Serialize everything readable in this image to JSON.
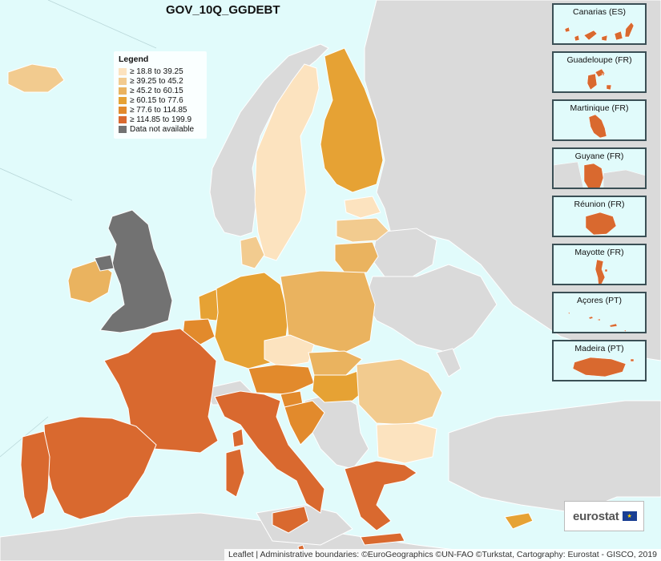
{
  "map": {
    "title": "GOV_10Q_GGDEBT",
    "colors": {
      "sea": "#e1fbfb",
      "no_data_country": "#dadada",
      "border": "#ffffff",
      "class1": "#fce3bf",
      "class2": "#f2cb8f",
      "class3": "#eab35f",
      "class4": "#e6a234",
      "class5": "#e28a2c",
      "class6": "#d9692f",
      "not_available": "#727272"
    },
    "legend": {
      "title": "Legend",
      "items": [
        {
          "label": "≥ 18.8 to 39.25",
          "color": "#fce3bf"
        },
        {
          "label": "≥ 39.25 to 45.2",
          "color": "#f2cb8f"
        },
        {
          "label": "≥ 45.2 to 60.15",
          "color": "#eab35f"
        },
        {
          "label": "≥ 60.15 to 77.6",
          "color": "#e6a234"
        },
        {
          "label": "≥ 77.6 to 114.85",
          "color": "#e28a2c"
        },
        {
          "label": "≥ 114.85 to 199.9",
          "color": "#d9692f"
        },
        {
          "label": "Data not available",
          "color": "#727272"
        }
      ]
    },
    "insets": [
      {
        "label": "Canarias (ES)"
      },
      {
        "label": "Guadeloupe (FR)"
      },
      {
        "label": "Martinique (FR)"
      },
      {
        "label": "Guyane (FR)"
      },
      {
        "label": "Réunion (FR)"
      },
      {
        "label": "Mayotte (FR)"
      },
      {
        "label": "Açores (PT)"
      },
      {
        "label": "Madeira (PT)"
      }
    ],
    "logo": {
      "text": "eurostat"
    },
    "attribution": "Leaflet | Administrative boundaries: ©EuroGeographics ©UN-FAO ©Turkstat, Cartography: Eurostat - GISCO, 2019"
  }
}
